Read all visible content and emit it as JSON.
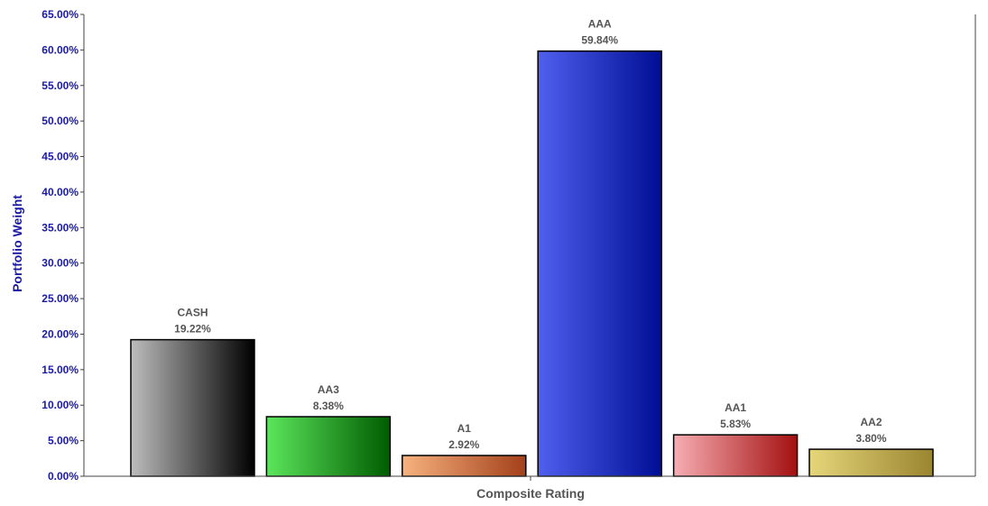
{
  "chart_data": {
    "type": "bar",
    "xlabel": "Composite Rating",
    "ylabel": "Portfolio Weight",
    "ylim": [
      0,
      65
    ],
    "ytick_step": 5,
    "ytick_labels": [
      "0.00%",
      "5.00%",
      "10.00%",
      "15.00%",
      "20.00%",
      "25.00%",
      "30.00%",
      "35.00%",
      "40.00%",
      "45.00%",
      "50.00%",
      "55.00%",
      "60.00%",
      "65.00%"
    ],
    "categories": [
      "CASH",
      "AA3",
      "A1",
      "AAA",
      "AA1",
      "AA2"
    ],
    "values": [
      19.22,
      8.38,
      2.92,
      59.84,
      5.83,
      3.8
    ],
    "value_labels": [
      "19.22%",
      "8.38%",
      "2.92%",
      "59.84%",
      "5.83%",
      "3.80%"
    ],
    "grid": false,
    "colors": [
      {
        "light": "#bdbdbd",
        "dark": "#000000"
      },
      {
        "light": "#5ce65c",
        "dark": "#005c00"
      },
      {
        "light": "#f7b27f",
        "dark": "#a3401a"
      },
      {
        "light": "#5060ee",
        "dark": "#000e94"
      },
      {
        "light": "#f7aeb3",
        "dark": "#a31010"
      },
      {
        "light": "#e6d67a",
        "dark": "#9a8530"
      }
    ]
  }
}
